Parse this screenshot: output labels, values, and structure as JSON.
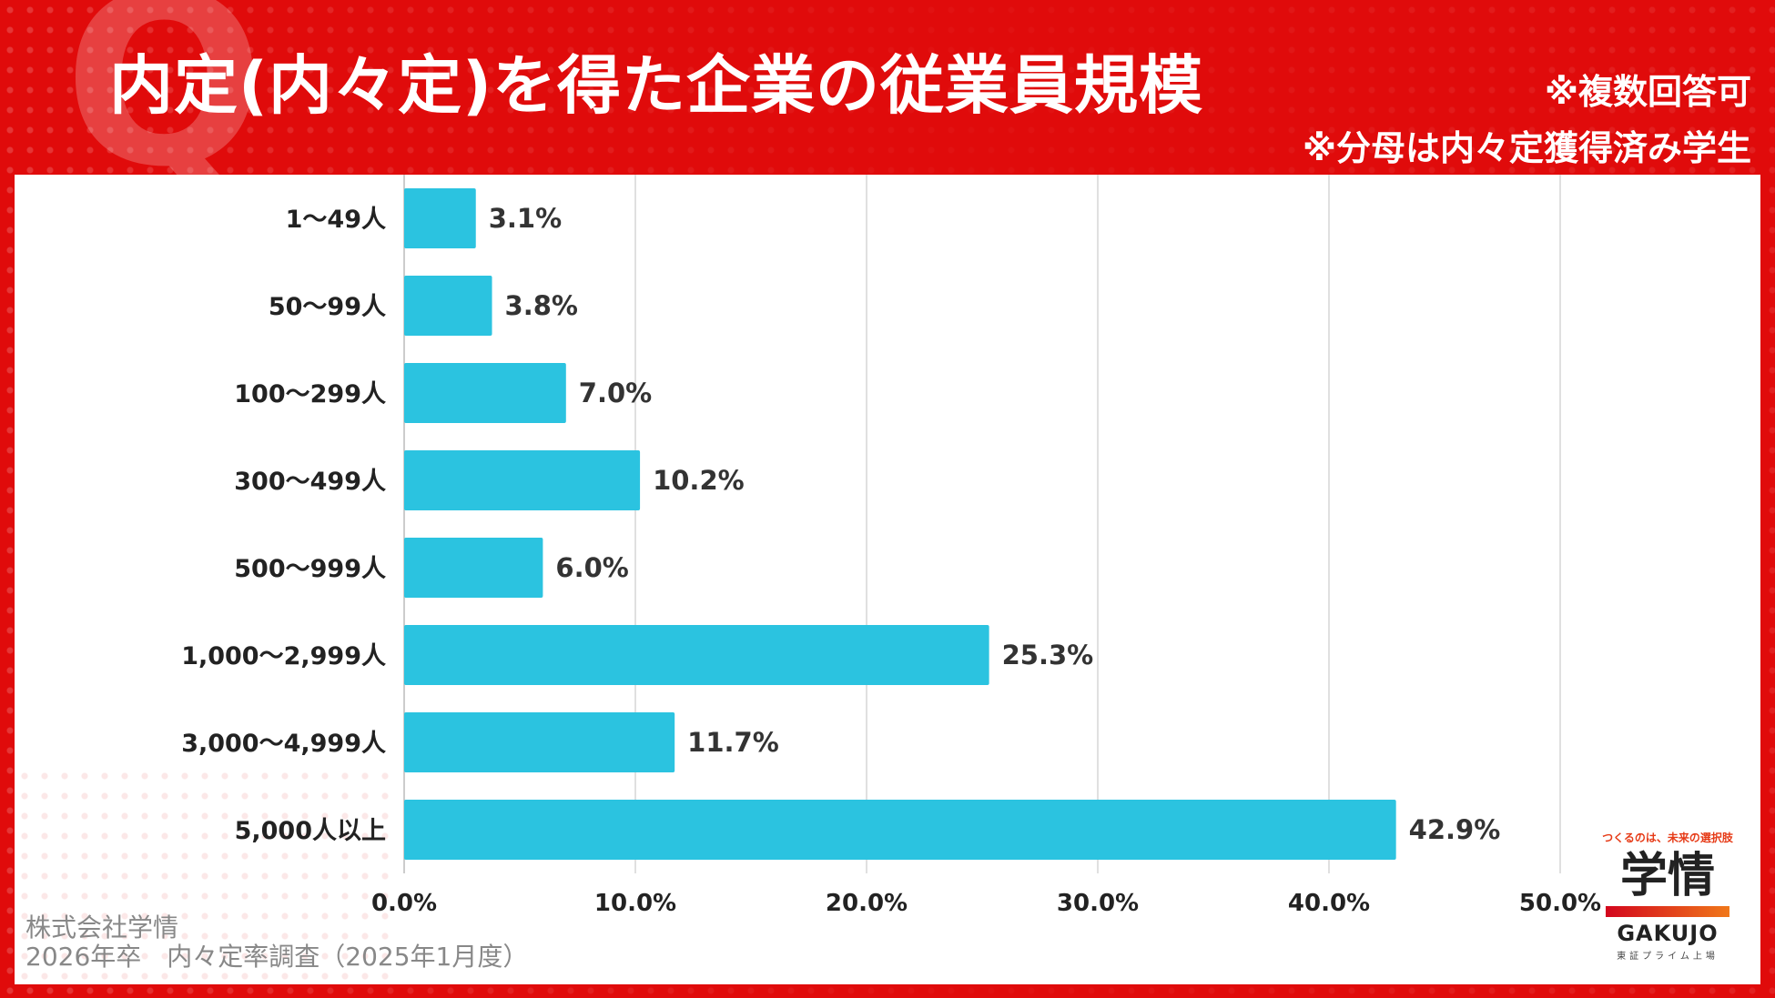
{
  "header": {
    "title": "内定(内々定)を得た企業の従業員規模",
    "note1": "※複数回答可",
    "note2": "※分母は内々定獲得済み学生"
  },
  "source": {
    "line1": "株式会社学情",
    "line2": "2026年卒　内々定率調査（2025年1月度）"
  },
  "logo": {
    "tagline": "つくるのは、未来の選択肢",
    "mark": "学情",
    "name": "GAKUJO",
    "sub": "東証プライム上場"
  },
  "colors": {
    "bar": "#2bc3e0",
    "background": "#e00b0b",
    "grid": "#d6d6d6"
  },
  "chart_data": {
    "type": "bar",
    "orientation": "horizontal",
    "title": "内定(内々定)を得た企業の従業員規模",
    "categories": [
      "1～49人",
      "50～99人",
      "100～299人",
      "300～499人",
      "500～999人",
      "1,000～2,999人",
      "3,000～4,999人",
      "5,000人以上"
    ],
    "values": [
      3.1,
      3.8,
      7.0,
      10.2,
      6.0,
      25.3,
      11.7,
      42.9
    ],
    "value_labels": [
      "3.1%",
      "3.8%",
      "7.0%",
      "10.2%",
      "6.0%",
      "25.3%",
      "11.7%",
      "42.9%"
    ],
    "xlim": [
      0,
      50
    ],
    "x_ticks": [
      "0.0%",
      "10.0%",
      "20.0%",
      "30.0%",
      "40.0%",
      "50.0%"
    ],
    "grid": true,
    "legend": "none"
  }
}
